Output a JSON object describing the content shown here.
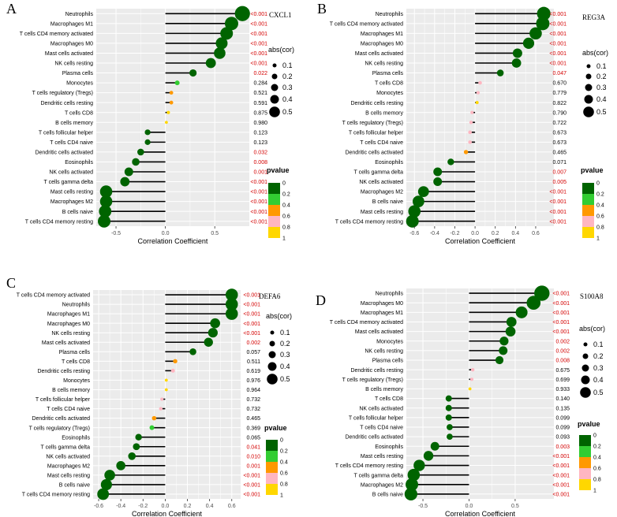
{
  "chart_data": [
    {
      "panel": "A",
      "gene": "CXCL1",
      "type": "lollipop",
      "xlabel": "Correlation Coefficient",
      "xlim": [
        -0.7,
        0.85
      ],
      "xticks": [
        -0.5,
        0.0,
        0.5
      ],
      "xtick_labels": [
        "-0.5",
        "0.0",
        "0.5"
      ],
      "categories": [
        "Neutrophils",
        "Macrophages M1",
        "T cells CD4 memory activated",
        "Macrophages M0",
        "Mast cells activated",
        "NK cells resting",
        "Plasma cells",
        "Monocytes",
        "T cells regulatory (Tregs)",
        "Dendritic cells resting",
        "T cells CD8",
        "B cells memory",
        "T cells follicular helper",
        "T cells CD4 naive",
        "Dendritic cells activated",
        "Eosinophils",
        "NK cells activated",
        "T cells gamma delta",
        "Mast cells resting",
        "Macrophages M2",
        "B cells naive",
        "T cells CD4 memory resting"
      ],
      "values": [
        0.78,
        0.67,
        0.62,
        0.57,
        0.55,
        0.46,
        0.28,
        0.12,
        0.06,
        0.06,
        0.03,
        0.01,
        -0.18,
        -0.18,
        -0.25,
        -0.3,
        -0.37,
        -0.41,
        -0.6,
        -0.6,
        -0.61,
        -0.62
      ],
      "pvalue_labels": [
        "<0.001",
        "<0.001",
        "<0.001",
        "<0.001",
        "<0.001",
        "<0.001",
        "0.022",
        "0.284",
        "0.521",
        "0.591",
        "0.875",
        "0.980",
        "0.123",
        "0.123",
        "0.032",
        "0.008",
        "0.001",
        "<0.001",
        "<0.001",
        "<0.001",
        "<0.001",
        "<0.001"
      ]
    },
    {
      "panel": "B",
      "gene": "REG3A",
      "type": "lollipop",
      "xlabel": "Correlation Coefficient",
      "xlim": [
        -0.68,
        0.78
      ],
      "xticks": [
        -0.6,
        -0.4,
        -0.2,
        0.0,
        0.2,
        0.4,
        0.6
      ],
      "xtick_labels": [
        "-0.6",
        "-0.4",
        "-0.2",
        "0.0",
        "0.2",
        "0.4",
        "0.6"
      ],
      "categories": [
        "Neutrophils",
        "T cells CD4 memory activated",
        "Macrophages M1",
        "Macrophages M0",
        "Mast cells activated",
        "NK cells resting",
        "Plasma cells",
        "T cells CD8",
        "Monocytes",
        "Dendritic cells resting",
        "B cells memory",
        "T cells regulatory (Tregs)",
        "T cells follicular helper",
        "T cells CD4 naive",
        "Dendritic cells activated",
        "Eosinophils",
        "T cells gamma delta",
        "NK cells activated",
        "Macrophages M2",
        "B cells naive",
        "Mast cells resting",
        "T cells CD4 memory resting"
      ],
      "values": [
        0.68,
        0.67,
        0.6,
        0.53,
        0.42,
        0.41,
        0.25,
        0.05,
        0.03,
        0.02,
        -0.03,
        -0.04,
        -0.05,
        -0.05,
        -0.09,
        -0.24,
        -0.37,
        -0.37,
        -0.51,
        -0.56,
        -0.6,
        -0.62
      ],
      "pvalue_labels": [
        "<0.001",
        "<0.001",
        "<0.001",
        "<0.001",
        "<0.001",
        "<0.001",
        "0.047",
        "0.670",
        "0.779",
        "0.822",
        "0.790",
        "0.722",
        "0.673",
        "0.673",
        "0.465",
        "0.071",
        "0.007",
        "0.005",
        "<0.001",
        "<0.001",
        "<0.001",
        "<0.001"
      ]
    },
    {
      "panel": "C",
      "gene": "DEFA6",
      "type": "lollipop",
      "xlabel": "Correlation Coefficient",
      "xlim": [
        -0.65,
        0.68
      ],
      "xticks": [
        -0.6,
        -0.4,
        -0.2,
        0.0,
        0.2,
        0.4,
        0.6
      ],
      "xtick_labels": [
        "-0.6",
        "-0.4",
        "-0.2",
        "0.0",
        "0.2",
        "0.4",
        "0.6"
      ],
      "categories": [
        "T cells CD4 memory activated",
        "Neutrophils",
        "Macrophages M1",
        "Macrophages M0",
        "NK cells resting",
        "Mast cells activated",
        "Plasma cells",
        "T cells CD8",
        "Dendritic cells resting",
        "Monocytes",
        "B cells memory",
        "T cells follicular helper",
        "T cells CD4 naive",
        "Dendritic cells activated",
        "T cells regulatory (Tregs)",
        "Eosinophils",
        "T cells gamma delta",
        "NK cells activated",
        "Macrophages M2",
        "Mast cells resting",
        "B cells naive",
        "T cells CD4 memory resting"
      ],
      "values": [
        0.6,
        0.6,
        0.6,
        0.45,
        0.43,
        0.39,
        0.25,
        0.09,
        0.07,
        0.01,
        0.01,
        -0.03,
        -0.04,
        -0.1,
        -0.12,
        -0.24,
        -0.26,
        -0.3,
        -0.4,
        -0.5,
        -0.53,
        -0.56
      ],
      "pvalue_labels": [
        "<0.001",
        "<0.001",
        "<0.001",
        "<0.001",
        "<0.001",
        "0.002",
        "0.057",
        "0.511",
        "0.619",
        "0.976",
        "0.964",
        "0.732",
        "0.732",
        "0.465",
        "0.369",
        "0.065",
        "0.041",
        "0.010",
        "0.001",
        "<0.001",
        "<0.001",
        "<0.001"
      ]
    },
    {
      "panel": "D",
      "gene": "S100A8",
      "type": "lollipop",
      "xlabel": "Correlation Coefficient",
      "xlim": [
        -0.68,
        0.92
      ],
      "xticks": [
        -0.5,
        0.0,
        0.5
      ],
      "xtick_labels": [
        "-0.5",
        "0.0",
        "0.5"
      ],
      "categories": [
        "Neutrophils",
        "Macrophages M0",
        "Macrophages M1",
        "T cells CD4 memory activated",
        "Mast cells activated",
        "Monocytes",
        "NK cells resting",
        "Plasma cells",
        "Dendritic cells resting",
        "T cells regulatory (Tregs)",
        "B cells memory",
        "T cells CD8",
        "NK cells activated",
        "T cells follicular helper",
        "T cells CD4 naive",
        "Dendritic cells activated",
        "Eosinophils",
        "Mast cells resting",
        "T cells CD4 memory resting",
        "T cells gamma delta",
        "Macrophages M2",
        "B cells naive"
      ],
      "values": [
        0.79,
        0.7,
        0.57,
        0.46,
        0.45,
        0.38,
        0.37,
        0.33,
        0.04,
        0.03,
        0.01,
        -0.22,
        -0.22,
        -0.22,
        -0.21,
        -0.21,
        -0.37,
        -0.44,
        -0.54,
        -0.6,
        -0.62,
        -0.63
      ],
      "pvalue_labels": [
        "<0.001",
        "<0.001",
        "<0.001",
        "<0.001",
        "<0.001",
        "0.002",
        "0.002",
        "0.008",
        "0.675",
        "0.699",
        "0.933",
        "0.140",
        "0.135",
        "0.099",
        "0.099",
        "0.093",
        "0.003",
        "<0.001",
        "<0.001",
        "<0.001",
        "<0.001",
        "<0.001"
      ]
    }
  ],
  "legend": {
    "size_title": "abs(cor)",
    "size_levels": [
      "0.1",
      "0.2",
      "0.3",
      "0.4",
      "0.5"
    ],
    "color_title": "pvalue",
    "color_breaks": [
      "0",
      "0.2",
      "0.4",
      "0.6",
      "0.8",
      "1"
    ],
    "color_scale": [
      "#006400",
      "#32cd32",
      "#ff9900",
      "#ffb6c1",
      "#ffd700"
    ]
  },
  "colors": {
    "panel_bg": "#ebebeb",
    "grid": "#ffffff",
    "stem": "#000000",
    "significant_text": "#d40000",
    "normal_text": "#000000"
  }
}
